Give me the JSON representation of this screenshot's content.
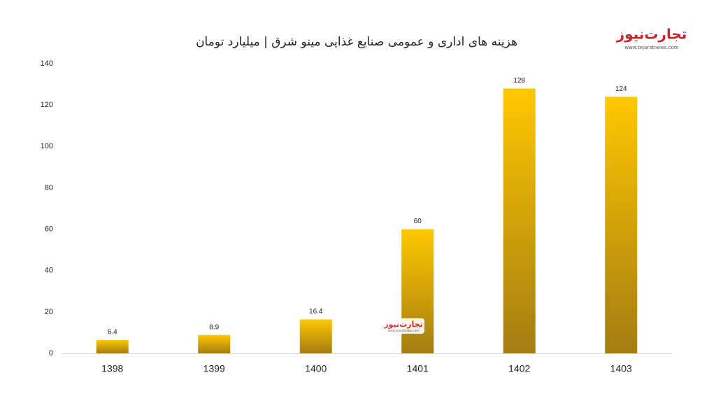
{
  "chart_data": {
    "type": "bar",
    "title": "هزینه های اداری و عمومی صنایع غذایی مینو شرق | میلیارد تومان",
    "logo": {
      "name": "تجارت‌نیوز",
      "url": "www.tejaratnews.com"
    },
    "categories": [
      "1398",
      "1399",
      "1400",
      "1401",
      "1402",
      "1403"
    ],
    "values": [
      6.4,
      8.9,
      16.4,
      60,
      128,
      124
    ],
    "color": "#ffc800",
    "ylim": [
      0,
      140
    ],
    "yticks": [
      0,
      20,
      40,
      60,
      80,
      100,
      120,
      140
    ],
    "grid": false
  }
}
